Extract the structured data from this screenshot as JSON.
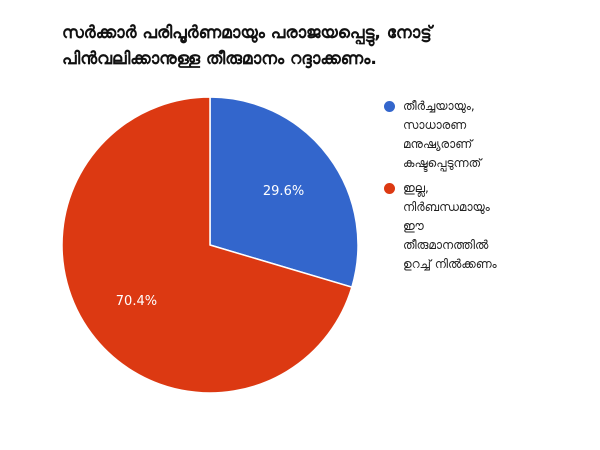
{
  "chart_data": {
    "type": "pie",
    "title_lines": [
      "സർക്കാർ പരിപൂർണമായും പരാജയപ്പെട്ടു, നോട്ട്",
      "പിൻവലിക്കാനുള്ള തീരുമാനം റദ്ദാക്കണം."
    ],
    "slices": [
      {
        "label_lines": [
          "തീർച്ചയായും,",
          "സാധാരണ",
          "മനുഷ്യരാണ്",
          "കഷ്ടപ്പെടുന്നത്"
        ],
        "value": 29.6,
        "display": "29.6%",
        "color": "#3366cc"
      },
      {
        "label_lines": [
          "ഇല്ല,",
          "നിർബന്ധമായും",
          "ഈ",
          "തീരുമാനത്തിൽ",
          "ഉറച്ച് നിൽക്കണം"
        ],
        "value": 70.4,
        "display": "70.4%",
        "color": "#dc3912"
      }
    ],
    "legend_position": "right",
    "start_angle": "12 o'clock, clockwise"
  }
}
